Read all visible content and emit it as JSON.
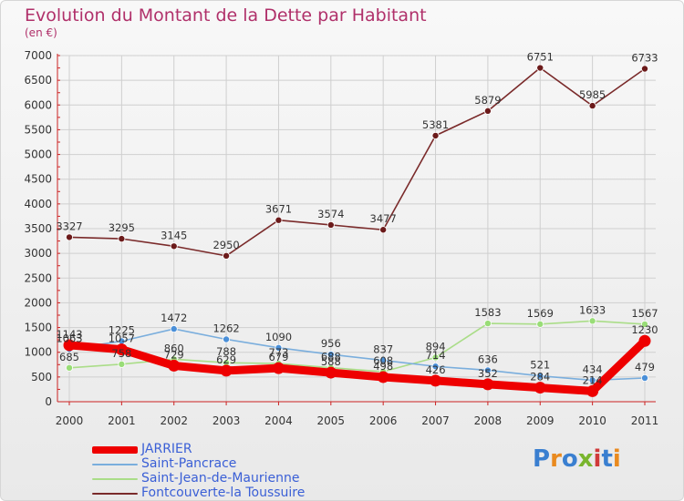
{
  "chart_data": {
    "type": "line",
    "title": "Evolution du Montant de la Dette par Habitant",
    "subtitle": "(en €)",
    "xlabel": "",
    "ylabel": "",
    "ylim": [
      0,
      7000
    ],
    "yticks": [
      "0",
      "500",
      "1000",
      "1500",
      "2000",
      "2500",
      "3000",
      "3500",
      "4000",
      "4500",
      "5000",
      "5500",
      "6000",
      "6500",
      "7000"
    ],
    "categories": [
      "2000",
      "2001",
      "2002",
      "2003",
      "2004",
      "2005",
      "2006",
      "2007",
      "2008",
      "2009",
      "2010",
      "2011"
    ],
    "grid": true,
    "legend_position": "bottom-left",
    "series": [
      {
        "name": "Saint-Jean-de-Maurienne",
        "color": "#99dd77",
        "line_color": "#aadd88",
        "values": [
          685,
          758,
          860,
          788,
          773,
          688,
          608,
          894,
          1583,
          1569,
          1633,
          1567
        ]
      },
      {
        "name": "Saint-Pancrace",
        "color": "#4a8fd8",
        "line_color": "#7aaedd",
        "values": [
          1063,
          1225,
          1472,
          1262,
          1090,
          956,
          837,
          714,
          636,
          521,
          434,
          479
        ]
      },
      {
        "name": "Fontcouverte-la Toussuire",
        "color": "#6b1a1a",
        "line_color": "#7a2a2a",
        "values": [
          3327,
          3295,
          3145,
          2950,
          3671,
          3574,
          3477,
          5381,
          5879,
          6751,
          5985,
          6733
        ]
      },
      {
        "name": "JARRIER",
        "color": "#ee0000",
        "line_color": "#ee0000",
        "values": [
          1143,
          1057,
          729,
          629,
          679,
          588,
          498,
          426,
          352,
          284,
          214,
          1230
        ]
      }
    ]
  },
  "legend": [
    {
      "name": "JARRIER",
      "color": "#ee0000"
    },
    {
      "name": "Saint-Pancrace",
      "color": "#7aaedd"
    },
    {
      "name": "Saint-Jean-de-Maurienne",
      "color": "#aadd88"
    },
    {
      "name": "Fontcouverte-la Toussuire",
      "color": "#7a2a2a"
    }
  ],
  "logo": {
    "text": "Proxiti",
    "letter_colors": [
      "#3a7fd0",
      "#e98a1f",
      "#3a7fd0",
      "#79b52d",
      "#d03a3a",
      "#3a7fd0",
      "#e98a1f"
    ]
  }
}
